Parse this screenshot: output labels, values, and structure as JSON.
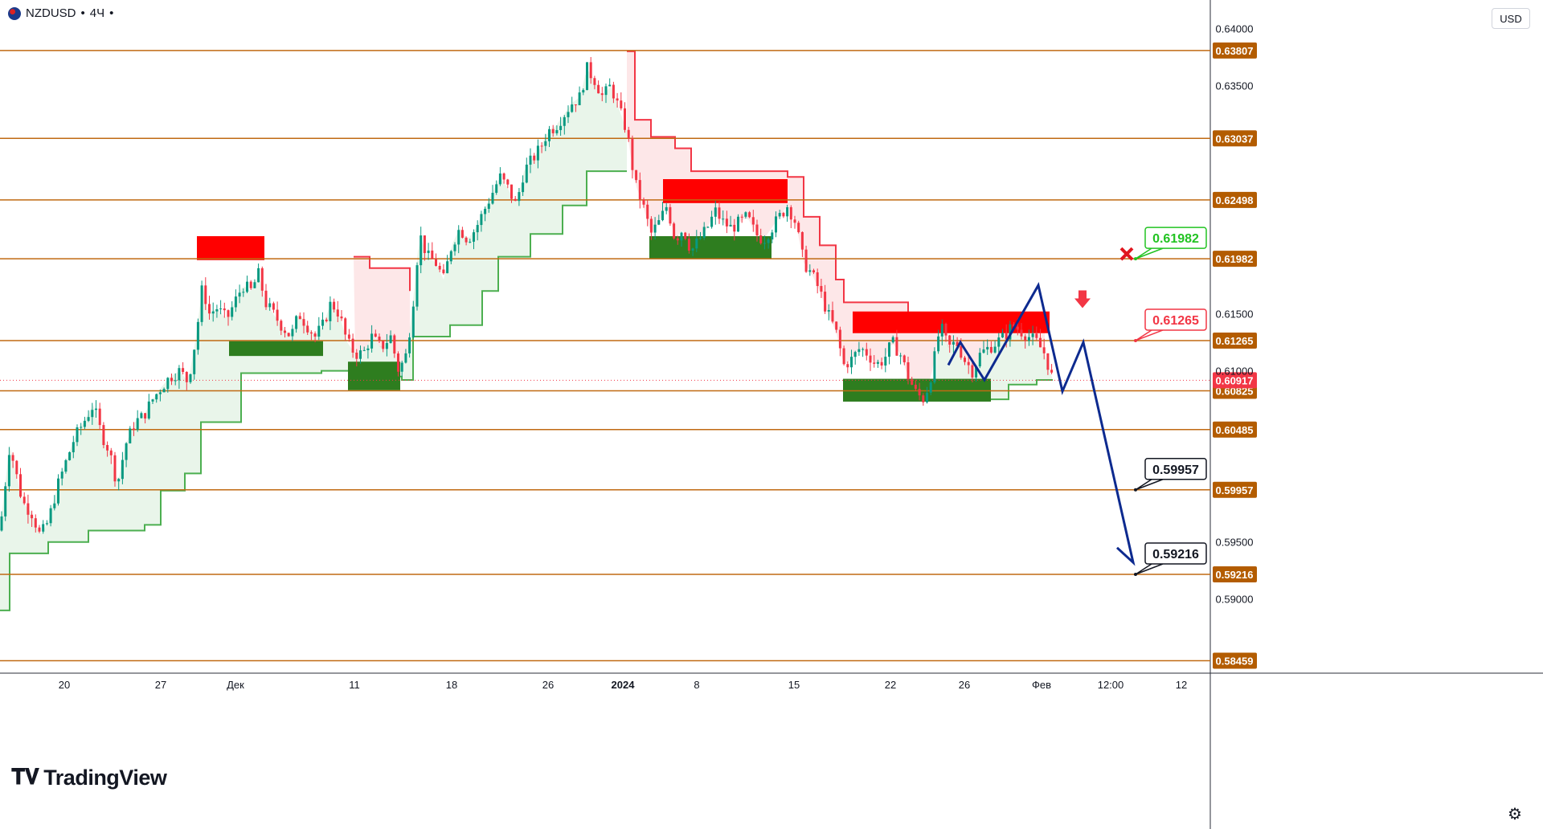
{
  "header": {
    "symbol": "NZDUSD",
    "interval": "4Ч",
    "separator": "•"
  },
  "logo": {
    "mark": "𝐓𝐕",
    "text": "TradingView"
  },
  "currency": "USD",
  "settings_icon": "⚙",
  "colors": {
    "up_candle": "#089981",
    "down_candle": "#f23645",
    "level_line": "#c06a12",
    "level_label_bg": "#b35c00",
    "supply_zone": "#ff0000",
    "demand_zone": "#2e7d1f",
    "supertrend_up": "#4caf50",
    "supertrend_down": "#f23645",
    "projection": "#0d2a8f",
    "current_price_bg": "#f23645"
  },
  "chart_data": {
    "type": "candlestick",
    "symbol": "NZDUSD",
    "timeframe": "4H",
    "ylim": [
      0.5835,
      0.6425
    ],
    "y_ticks": [
      "0.64000",
      "0.63500",
      "0.61500",
      "0.61000",
      "0.59500",
      "0.59000"
    ],
    "x_ticks": [
      {
        "label": "20",
        "bold": false
      },
      {
        "label": "27",
        "bold": false
      },
      {
        "label": "Дек",
        "bold": false
      },
      {
        "label": "11",
        "bold": false
      },
      {
        "label": "18",
        "bold": false
      },
      {
        "label": "26",
        "bold": false
      },
      {
        "label": "2024",
        "bold": true
      },
      {
        "label": "8",
        "bold": false
      },
      {
        "label": "15",
        "bold": false
      },
      {
        "label": "22",
        "bold": false
      },
      {
        "label": "26",
        "bold": false
      },
      {
        "label": "Фев",
        "bold": false
      },
      {
        "label": "12:00",
        "bold": false
      },
      {
        "label": "12",
        "bold": false
      }
    ],
    "horizontal_levels": [
      "0.63807",
      "0.63037",
      "0.62498",
      "0.61982",
      "0.61265",
      "0.60825",
      "0.60485",
      "0.59957",
      "0.59216",
      "0.58459"
    ],
    "current_price": "0.60917",
    "price_path": [
      [
        0,
        0.596
      ],
      [
        12,
        0.6035
      ],
      [
        20,
        0.601
      ],
      [
        28,
        0.5985
      ],
      [
        40,
        0.5975
      ],
      [
        50,
        0.5955
      ],
      [
        60,
        0.5968
      ],
      [
        72,
        0.6
      ],
      [
        82,
        0.602
      ],
      [
        92,
        0.604
      ],
      [
        104,
        0.6055
      ],
      [
        116,
        0.607
      ],
      [
        126,
        0.6045
      ],
      [
        136,
        0.603
      ],
      [
        146,
        0.6
      ],
      [
        156,
        0.6035
      ],
      [
        168,
        0.6055
      ],
      [
        178,
        0.606
      ],
      [
        190,
        0.6075
      ],
      [
        200,
        0.6085
      ],
      [
        212,
        0.6095
      ],
      [
        224,
        0.61
      ],
      [
        234,
        0.609
      ],
      [
        244,
        0.613
      ],
      [
        252,
        0.6175
      ],
      [
        260,
        0.615
      ],
      [
        270,
        0.6155
      ],
      [
        282,
        0.6145
      ],
      [
        292,
        0.616
      ],
      [
        302,
        0.6175
      ],
      [
        312,
        0.617
      ],
      [
        322,
        0.6185
      ],
      [
        330,
        0.616
      ],
      [
        340,
        0.615
      ],
      [
        350,
        0.614
      ],
      [
        362,
        0.613
      ],
      [
        372,
        0.615
      ],
      [
        382,
        0.614
      ],
      [
        392,
        0.613
      ],
      [
        402,
        0.614
      ],
      [
        412,
        0.616
      ],
      [
        422,
        0.615
      ],
      [
        432,
        0.6125
      ],
      [
        442,
        0.6115
      ],
      [
        452,
        0.6115
      ],
      [
        462,
        0.613
      ],
      [
        474,
        0.612
      ],
      [
        486,
        0.613
      ],
      [
        496,
        0.61
      ],
      [
        506,
        0.6115
      ],
      [
        514,
        0.616
      ],
      [
        522,
        0.622
      ],
      [
        532,
        0.62
      ],
      [
        542,
        0.6195
      ],
      [
        552,
        0.618
      ],
      [
        562,
        0.621
      ],
      [
        572,
        0.6225
      ],
      [
        582,
        0.6215
      ],
      [
        592,
        0.6225
      ],
      [
        602,
        0.624
      ],
      [
        612,
        0.6255
      ],
      [
        622,
        0.627
      ],
      [
        632,
        0.626
      ],
      [
        642,
        0.6245
      ],
      [
        652,
        0.6275
      ],
      [
        662,
        0.6285
      ],
      [
        672,
        0.6295
      ],
      [
        682,
        0.631
      ],
      [
        692,
        0.6315
      ],
      [
        702,
        0.6325
      ],
      [
        712,
        0.6335
      ],
      [
        722,
        0.634
      ],
      [
        730,
        0.6365
      ],
      [
        740,
        0.6355
      ],
      [
        750,
        0.634
      ],
      [
        760,
        0.635
      ],
      [
        770,
        0.633
      ],
      [
        780,
        0.631
      ],
      [
        790,
        0.6265
      ],
      [
        800,
        0.6245
      ],
      [
        810,
        0.622
      ],
      [
        820,
        0.623
      ],
      [
        830,
        0.6245
      ],
      [
        840,
        0.6215
      ],
      [
        850,
        0.6225
      ],
      [
        860,
        0.6205
      ],
      [
        870,
        0.6215
      ],
      [
        880,
        0.6225
      ],
      [
        890,
        0.624
      ],
      [
        900,
        0.623
      ],
      [
        910,
        0.6225
      ],
      [
        920,
        0.623
      ],
      [
        930,
        0.6235
      ],
      [
        940,
        0.622
      ],
      [
        950,
        0.6215
      ],
      [
        960,
        0.6225
      ],
      [
        970,
        0.6235
      ],
      [
        980,
        0.6245
      ],
      [
        990,
        0.623
      ],
      [
        1000,
        0.6195
      ],
      [
        1010,
        0.6185
      ],
      [
        1020,
        0.617
      ],
      [
        1030,
        0.615
      ],
      [
        1040,
        0.6135
      ],
      [
        1050,
        0.6105
      ],
      [
        1060,
        0.611
      ],
      [
        1070,
        0.612
      ],
      [
        1080,
        0.6115
      ],
      [
        1090,
        0.6105
      ],
      [
        1100,
        0.611
      ],
      [
        1110,
        0.6125
      ],
      [
        1120,
        0.6115
      ],
      [
        1130,
        0.6095
      ],
      [
        1140,
        0.608
      ],
      [
        1150,
        0.6075
      ],
      [
        1160,
        0.61
      ],
      [
        1170,
        0.614
      ],
      [
        1180,
        0.612
      ],
      [
        1190,
        0.6125
      ],
      [
        1200,
        0.611
      ],
      [
        1210,
        0.61
      ],
      [
        1220,
        0.6115
      ],
      [
        1230,
        0.612
      ],
      [
        1240,
        0.6125
      ],
      [
        1250,
        0.613
      ],
      [
        1260,
        0.614
      ],
      [
        1270,
        0.6135
      ],
      [
        1280,
        0.613
      ],
      [
        1290,
        0.6125
      ],
      [
        1300,
        0.6115
      ],
      [
        1310,
        0.6092
      ]
    ],
    "projection_path": [
      [
        1180,
        0.6105
      ],
      [
        1195,
        0.6125
      ],
      [
        1225,
        0.6092
      ],
      [
        1292,
        0.6175
      ],
      [
        1322,
        0.6082
      ],
      [
        1348,
        0.6125
      ],
      [
        1410,
        0.5932
      ],
      [
        1390,
        0.5945
      ]
    ],
    "annotations": [
      {
        "label": "0.61982",
        "color": "#22c322"
      },
      {
        "label": "0.61265",
        "color": "#f23645"
      },
      {
        "label": "0.59957",
        "color": "#131722"
      },
      {
        "label": "0.59216",
        "color": "#131722"
      }
    ]
  }
}
